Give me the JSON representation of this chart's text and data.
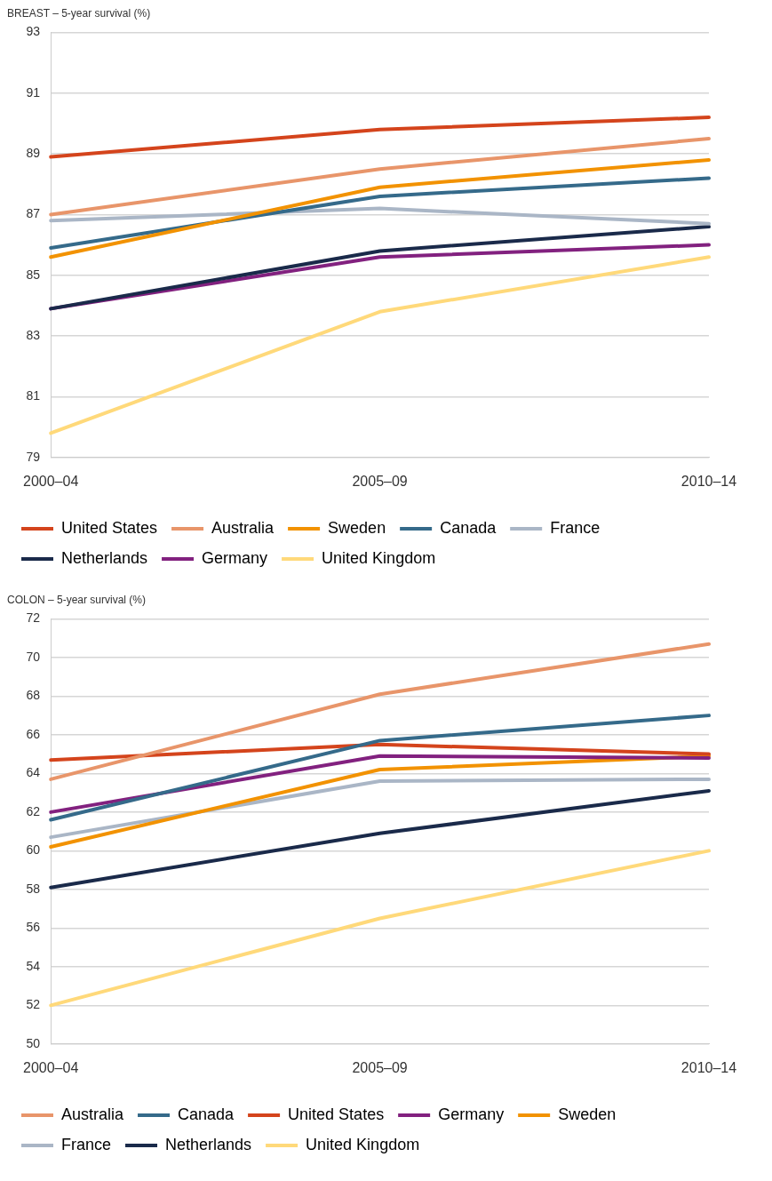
{
  "chart_data": [
    {
      "type": "line",
      "title": "BREAST – 5-year survival (%)",
      "categories": [
        "2000–04",
        "2005–09",
        "2010–14"
      ],
      "ylim": [
        79,
        93
      ],
      "yticks": [
        79,
        81,
        83,
        85,
        87,
        89,
        91,
        93
      ],
      "grid": "y",
      "legend": "bottom",
      "series": [
        {
          "name": "United States",
          "color": "#d4441c",
          "values": [
            88.9,
            89.8,
            90.2
          ]
        },
        {
          "name": "Australia",
          "color": "#e8956a",
          "values": [
            87.0,
            88.5,
            89.5
          ]
        },
        {
          "name": "Sweden",
          "color": "#f29200",
          "values": [
            85.6,
            87.9,
            88.8
          ]
        },
        {
          "name": "Canada",
          "color": "#356a8a",
          "values": [
            85.9,
            87.6,
            88.2
          ]
        },
        {
          "name": "France",
          "color": "#aab6c6",
          "values": [
            86.8,
            87.2,
            86.7
          ]
        },
        {
          "name": "Netherlands",
          "color": "#1a2a4a",
          "values": [
            83.9,
            85.8,
            86.6
          ]
        },
        {
          "name": "Germany",
          "color": "#82217f",
          "values": [
            83.9,
            85.6,
            86.0
          ]
        },
        {
          "name": "United Kingdom",
          "color": "#ffd97a",
          "values": [
            79.8,
            83.8,
            85.6
          ]
        }
      ]
    },
    {
      "type": "line",
      "title": "COLON – 5-year survival (%)",
      "categories": [
        "2000–04",
        "2005–09",
        "2010–14"
      ],
      "ylim": [
        50,
        72
      ],
      "yticks": [
        50,
        52,
        54,
        56,
        58,
        60,
        62,
        64,
        66,
        68,
        70,
        72
      ],
      "grid": "y",
      "legend": "bottom",
      "series": [
        {
          "name": "Australia",
          "color": "#e8956a",
          "values": [
            63.7,
            68.1,
            70.7
          ]
        },
        {
          "name": "Canada",
          "color": "#356a8a",
          "values": [
            61.6,
            65.7,
            67.0
          ]
        },
        {
          "name": "United States",
          "color": "#d4441c",
          "values": [
            64.7,
            65.5,
            65.0
          ]
        },
        {
          "name": "Germany",
          "color": "#82217f",
          "values": [
            62.0,
            64.9,
            64.8
          ]
        },
        {
          "name": "Sweden",
          "color": "#f29200",
          "values": [
            60.2,
            64.2,
            64.9
          ]
        },
        {
          "name": "France",
          "color": "#aab6c6",
          "values": [
            60.7,
            63.6,
            63.7
          ]
        },
        {
          "name": "Netherlands",
          "color": "#1a2a4a",
          "values": [
            58.1,
            60.9,
            63.1
          ]
        },
        {
          "name": "United Kingdom",
          "color": "#ffd97a",
          "values": [
            52.0,
            56.5,
            60.0
          ]
        }
      ]
    }
  ]
}
